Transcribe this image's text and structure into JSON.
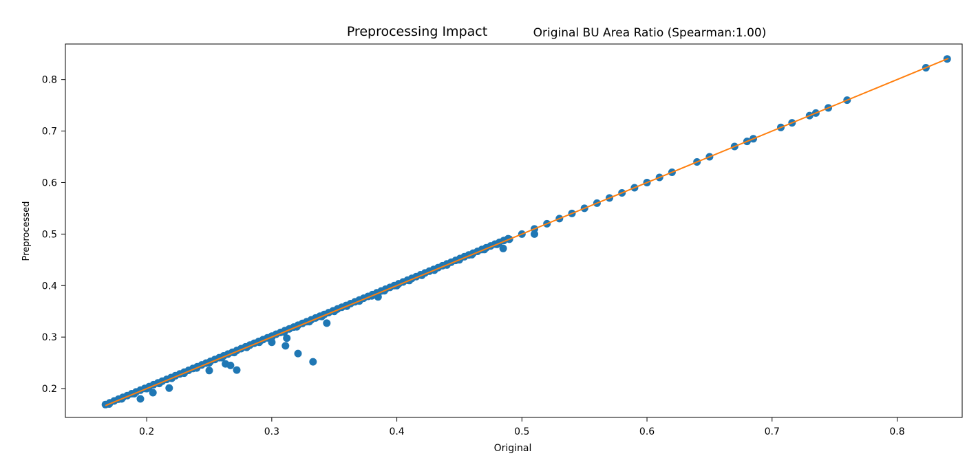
{
  "chart_data": {
    "type": "scatter",
    "suptitle": "Preprocessing Impact",
    "title": "Original BU Area Ratio (Spearman:1.00)",
    "xlabel": "Original",
    "ylabel": "Preprocessed",
    "xlim": [
      0.135,
      0.852
    ],
    "ylim": [
      0.144,
      0.869
    ],
    "xticks": [
      0.2,
      0.3,
      0.4,
      0.5,
      0.6,
      0.7,
      0.8
    ],
    "yticks": [
      0.2,
      0.3,
      0.4,
      0.5,
      0.6,
      0.7,
      0.8
    ],
    "grid": false,
    "colors": {
      "points": "#1f77b4",
      "line": "#ff7f0e"
    },
    "fit_line": {
      "x": [
        0.167,
        0.841
      ],
      "y": [
        0.167,
        0.841
      ]
    },
    "outliers": [
      [
        0.195,
        0.18
      ],
      [
        0.205,
        0.192
      ],
      [
        0.218,
        0.201
      ],
      [
        0.25,
        0.235
      ],
      [
        0.263,
        0.248
      ],
      [
        0.267,
        0.245
      ],
      [
        0.272,
        0.236
      ],
      [
        0.3,
        0.29
      ],
      [
        0.311,
        0.283
      ],
      [
        0.312,
        0.298
      ],
      [
        0.321,
        0.268
      ],
      [
        0.333,
        0.252
      ],
      [
        0.344,
        0.327
      ],
      [
        0.385,
        0.378
      ],
      [
        0.485,
        0.472
      ],
      [
        0.51,
        0.5
      ]
    ],
    "diagonal_points": [
      0.17,
      0.18,
      0.19,
      0.2,
      0.21,
      0.22,
      0.23,
      0.24,
      0.25,
      0.26,
      0.27,
      0.28,
      0.29,
      0.3,
      0.31,
      0.32,
      0.33,
      0.34,
      0.35,
      0.36,
      0.37,
      0.38,
      0.39,
      0.4,
      0.41,
      0.42,
      0.43,
      0.44,
      0.45,
      0.46,
      0.47,
      0.48,
      0.49,
      0.5,
      0.51,
      0.52,
      0.53,
      0.54,
      0.55,
      0.56,
      0.57,
      0.58,
      0.59,
      0.6,
      0.61,
      0.62,
      0.64,
      0.65,
      0.67,
      0.68,
      0.685,
      0.707,
      0.716,
      0.73,
      0.735,
      0.745,
      0.76,
      0.823,
      0.84
    ]
  }
}
